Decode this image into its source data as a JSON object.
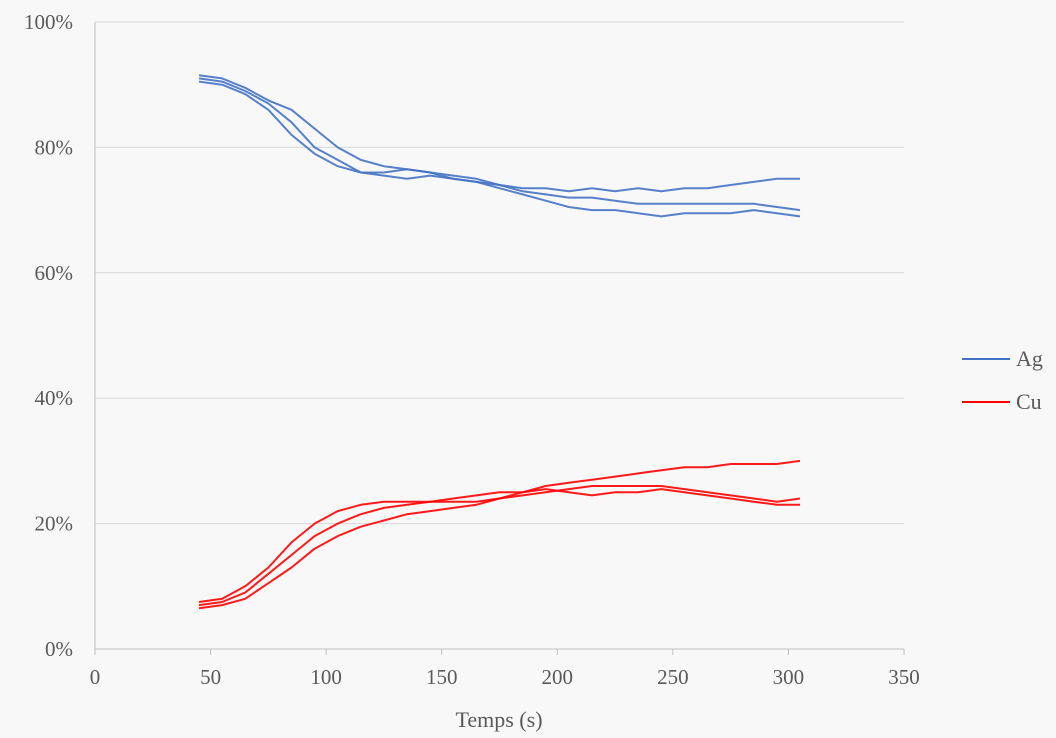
{
  "chart_data": {
    "type": "line",
    "title": "",
    "xlabel": "Temps (s)",
    "ylabel": "",
    "xlim": [
      0,
      350
    ],
    "ylim": [
      0,
      100
    ],
    "x_ticks": [
      0,
      50,
      100,
      150,
      200,
      250,
      300,
      350
    ],
    "x_tick_labels": [
      "0",
      "50",
      "100",
      "150",
      "200",
      "250",
      "300",
      "350"
    ],
    "y_ticks": [
      0,
      20,
      40,
      60,
      80,
      100
    ],
    "y_tick_labels": [
      "0%",
      "20%",
      "40%",
      "60%",
      "80%",
      "100%"
    ],
    "grid": "horizontal",
    "legend_position": "right",
    "legend": [
      {
        "label": "Ag",
        "color": "#4472c4"
      },
      {
        "label": "Cu",
        "color": "#ff0000"
      }
    ],
    "series": [
      {
        "group": "Ag",
        "color": "#4472c4",
        "x": [
          45,
          55,
          65,
          75,
          85,
          95,
          105,
          115,
          125,
          135,
          145,
          155,
          165,
          175,
          185,
          195,
          205,
          215,
          225,
          235,
          245,
          255,
          265,
          275,
          285,
          295,
          305
        ],
        "y": [
          91,
          90.5,
          89,
          87,
          84,
          80,
          78,
          76,
          75.5,
          75,
          75.5,
          75,
          74.5,
          74,
          73.5,
          73.5,
          73,
          73.5,
          73,
          73.5,
          73,
          73.5,
          73.5,
          74,
          74.5,
          75,
          75
        ]
      },
      {
        "group": "Ag",
        "color": "#4472c4",
        "x": [
          45,
          55,
          65,
          75,
          85,
          95,
          105,
          115,
          125,
          135,
          145,
          155,
          165,
          175,
          185,
          195,
          205,
          215,
          225,
          235,
          245,
          255,
          265,
          275,
          285,
          295,
          305
        ],
        "y": [
          90.5,
          90,
          88.5,
          86,
          82,
          79,
          77,
          76,
          76,
          76.5,
          76,
          75.5,
          75,
          74,
          73,
          72.5,
          72,
          72,
          71.5,
          71,
          71,
          71,
          71,
          71,
          71,
          70.5,
          70
        ]
      },
      {
        "group": "Ag",
        "color": "#4472c4",
        "x": [
          45,
          55,
          65,
          75,
          85,
          95,
          105,
          115,
          125,
          135,
          145,
          155,
          165,
          175,
          185,
          195,
          205,
          215,
          225,
          235,
          245,
          255,
          265,
          275,
          285,
          295,
          305
        ],
        "y": [
          91.5,
          91,
          89.5,
          87.5,
          86,
          83,
          80,
          78,
          77,
          76.5,
          76,
          75,
          74.5,
          73.5,
          72.5,
          71.5,
          70.5,
          70,
          70,
          69.5,
          69,
          69.5,
          69.5,
          69.5,
          70,
          69.5,
          69
        ]
      },
      {
        "group": "Cu",
        "color": "#ff0000",
        "x": [
          45,
          55,
          65,
          75,
          85,
          95,
          105,
          115,
          125,
          135,
          145,
          155,
          165,
          175,
          185,
          195,
          205,
          215,
          225,
          235,
          245,
          255,
          265,
          275,
          285,
          295,
          305
        ],
        "y": [
          7,
          7.5,
          9,
          12,
          15,
          18,
          20,
          21.5,
          22.5,
          23,
          23.5,
          24,
          24.5,
          25,
          25,
          25.5,
          25,
          24.5,
          25,
          25,
          25.5,
          25,
          24.5,
          24,
          23.5,
          23,
          23
        ]
      },
      {
        "group": "Cu",
        "color": "#ff0000",
        "x": [
          45,
          55,
          65,
          75,
          85,
          95,
          105,
          115,
          125,
          135,
          145,
          155,
          165,
          175,
          185,
          195,
          205,
          215,
          225,
          235,
          245,
          255,
          265,
          275,
          285,
          295,
          305
        ],
        "y": [
          7.5,
          8,
          10,
          13,
          17,
          20,
          22,
          23,
          23.5,
          23.5,
          23.5,
          23.5,
          23.5,
          24,
          24.5,
          25,
          25.5,
          26,
          26,
          26,
          26,
          25.5,
          25,
          24.5,
          24,
          23.5,
          24
        ]
      },
      {
        "group": "Cu",
        "color": "#ff0000",
        "x": [
          45,
          55,
          65,
          75,
          85,
          95,
          105,
          115,
          125,
          135,
          145,
          155,
          165,
          175,
          185,
          195,
          205,
          215,
          225,
          235,
          245,
          255,
          265,
          275,
          285,
          295,
          305
        ],
        "y": [
          6.5,
          7,
          8,
          10.5,
          13,
          16,
          18,
          19.5,
          20.5,
          21.5,
          22,
          22.5,
          23,
          24,
          25,
          26,
          26.5,
          27,
          27.5,
          28,
          28.5,
          29,
          29,
          29.5,
          29.5,
          29.5,
          30
        ]
      }
    ]
  }
}
